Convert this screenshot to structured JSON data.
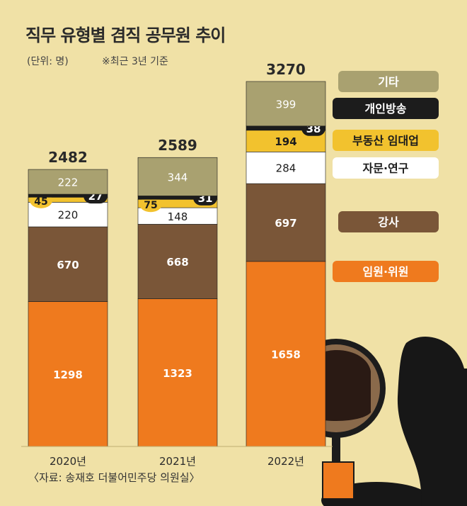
{
  "header": {
    "title": "직무 유형별 겸직 공무원 추이",
    "unit": "(단위: 명)",
    "basis": "※최근 3년 기준"
  },
  "footer": {
    "source": "〈자료: 송재호 더불어민주당 의원실〉"
  },
  "colors": {
    "background": "#f0e1a6",
    "기타": "#a9a170",
    "개인방송": "#1c1c1c",
    "부동산 임대업": "#f2c22e",
    "자문·연구": "#ffffff",
    "강사": "#7a5638",
    "임원·위원": "#ef7a1e",
    "stroke": "#1a1a1a"
  },
  "chart_data": {
    "type": "bar",
    "stacked": true,
    "categories": [
      "2020년",
      "2021년",
      "2022년"
    ],
    "totals": [
      2482,
      2589,
      3270
    ],
    "series": [
      {
        "name": "임원·위원",
        "values": [
          1298,
          1323,
          1658
        ]
      },
      {
        "name": "강사",
        "values": [
          670,
          668,
          697
        ]
      },
      {
        "name": "자문·연구",
        "values": [
          220,
          148,
          284
        ]
      },
      {
        "name": "부동산 임대업",
        "values": [
          45,
          75,
          194
        ]
      },
      {
        "name": "개인방송",
        "values": [
          27,
          31,
          38
        ]
      },
      {
        "name": "기타",
        "values": [
          222,
          344,
          399
        ]
      }
    ],
    "legend_placement": "right",
    "grid": false
  }
}
